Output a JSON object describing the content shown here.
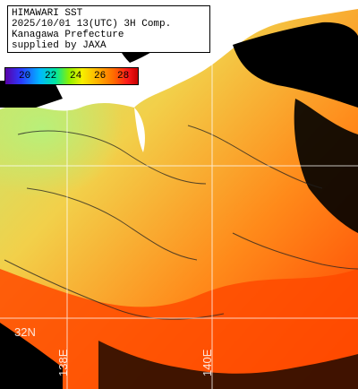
{
  "header": {
    "line1": "HIMAWARI SST",
    "line2": "2025/10/01 13(UTC) 3H Comp.",
    "line3": "Kanagawa Prefecture",
    "line4": "supplied by JAXA"
  },
  "legend": {
    "ticks": [
      "20",
      "22",
      "24",
      "26",
      "28"
    ],
    "colors": [
      "#5a00a8",
      "#2a3bff",
      "#00b7ff",
      "#00e6a0",
      "#8cf000",
      "#f6ef00",
      "#ffb000",
      "#ff6a00",
      "#ff1b1b",
      "#c50000"
    ]
  },
  "map": {
    "latitude_label": "32N",
    "longitude_labels": [
      "138E",
      "140E"
    ],
    "colors": {
      "land": "#ffffff",
      "cloud": "#000000",
      "contour": "#222222",
      "grid": "#ffffff",
      "sst_cool": "#b8f07a",
      "sst_mid": "#f2d04a",
      "sst_warm": "#ff8a1a",
      "sst_hot": "#ff3b00"
    }
  }
}
